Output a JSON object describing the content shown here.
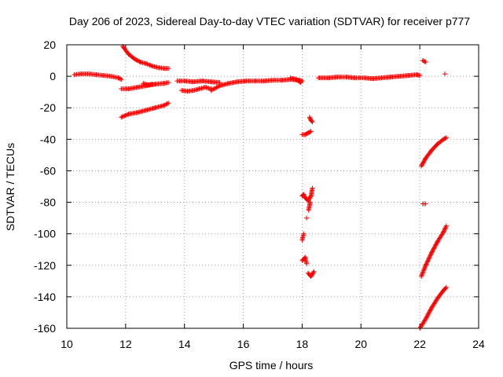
{
  "chart_data": {
    "type": "scatter",
    "title": "Day 206 of 2023, Sidereal Day-to-day VTEC variation (SDTVAR) for receiver p777",
    "xlabel": "GPS time / hours",
    "ylabel": "SDTVAR / TECUs",
    "xlim": [
      10,
      24
    ],
    "ylim": [
      -160,
      20
    ],
    "xticks": [
      "10",
      "12",
      "14",
      "16",
      "18",
      "20",
      "22",
      "24"
    ],
    "yticks": [
      "20",
      "0",
      "-20",
      "-40",
      "-60",
      "-80",
      "-100",
      "-120",
      "-140",
      "-160"
    ],
    "grid": true,
    "marker": "+",
    "color": "#ff0000",
    "series": [
      {
        "name": "seg-1",
        "x": [
          10.25,
          10.5,
          10.75,
          11.0,
          11.25,
          11.5,
          11.75,
          11.85
        ],
        "y": [
          1,
          1.5,
          1.5,
          1,
          0.5,
          0,
          -1,
          -2
        ]
      },
      {
        "name": "seg-2",
        "x": [
          11.9,
          12.1,
          12.3,
          12.5,
          12.7,
          12.9,
          13.1,
          13.3,
          13.45
        ],
        "y": [
          19,
          14,
          11,
          9,
          8,
          6.5,
          5.5,
          5,
          5
        ]
      },
      {
        "name": "seg-3",
        "x": [
          11.85,
          12.1,
          12.4,
          12.7,
          13.0,
          13.3,
          13.45
        ],
        "y": [
          -8,
          -8,
          -7,
          -6,
          -5,
          -4.5,
          -4
        ]
      },
      {
        "name": "seg-4",
        "x": [
          11.85,
          12.1,
          12.4,
          12.7,
          13.0,
          13.3,
          13.45
        ],
        "y": [
          -26,
          -24,
          -23,
          -21.5,
          -20,
          -18.5,
          -17
        ]
      },
      {
        "name": "seg-5",
        "x": [
          12.6,
          12.75,
          12.9
        ],
        "y": [
          -4.5,
          -5.5,
          -5
        ]
      },
      {
        "name": "seg-6",
        "x": [
          13.75,
          14.0,
          14.3,
          14.6,
          14.9,
          15.2
        ],
        "y": [
          -3,
          -3,
          -3.5,
          -3,
          -3.5,
          -4
        ]
      },
      {
        "name": "seg-7",
        "x": [
          13.9,
          14.1,
          14.3,
          14.5,
          14.7,
          14.9
        ],
        "y": [
          -9,
          -9.5,
          -9,
          -8,
          -7,
          -8
        ]
      },
      {
        "name": "seg-8",
        "x": [
          14.9,
          15.2,
          15.5,
          15.8,
          16.1,
          16.4,
          16.7,
          17.0,
          17.3,
          17.6,
          17.9,
          18.0
        ],
        "y": [
          -9,
          -6,
          -4.5,
          -3.5,
          -3,
          -3,
          -3,
          -2.5,
          -2.5,
          -2,
          -2.5,
          -3
        ]
      },
      {
        "name": "seg-9",
        "x": [
          17.6,
          17.8,
          17.95
        ],
        "y": [
          -1,
          -2,
          -4
        ]
      },
      {
        "name": "seg-10",
        "x": [
          18.55,
          18.9,
          19.2,
          19.5,
          19.8,
          20.1,
          20.4,
          20.7,
          21.0,
          21.3,
          21.6,
          21.9,
          22.0
        ],
        "y": [
          -1,
          -1,
          -0.5,
          -0.5,
          -1,
          -1,
          -1.5,
          -1,
          -0.5,
          0,
          0.5,
          1,
          0.5
        ]
      },
      {
        "name": "seg-11",
        "x": [
          22.1,
          22.2
        ],
        "y": [
          10,
          9
        ]
      },
      {
        "name": "seg-12",
        "x": [
          22.85
        ],
        "y": [
          1.5
        ]
      },
      {
        "name": "seg-13",
        "x": [
          18.25,
          18.3,
          18.35
        ],
        "y": [
          -26,
          -28,
          -29
        ]
      },
      {
        "name": "seg-14",
        "x": [
          18.0,
          18.1,
          18.2,
          18.3
        ],
        "y": [
          -37,
          -37,
          -36,
          -35
        ]
      },
      {
        "name": "seg-15",
        "x": [
          18.0,
          18.05,
          18.1,
          18.2,
          18.3,
          18.35
        ],
        "y": [
          -76,
          -75,
          -77,
          -79,
          -76,
          -71
        ]
      },
      {
        "name": "seg-16",
        "x": [
          18.22,
          18.27
        ],
        "y": [
          -85,
          -80
        ]
      },
      {
        "name": "seg-17",
        "x": [
          18.15
        ],
        "y": [
          -90
        ]
      },
      {
        "name": "seg-18",
        "x": [
          18.0,
          18.05
        ],
        "y": [
          -104,
          -100
        ]
      },
      {
        "name": "seg-19",
        "x": [
          18.0,
          18.1,
          18.15
        ],
        "y": [
          -117,
          -115,
          -119
        ]
      },
      {
        "name": "seg-20",
        "x": [
          18.2,
          18.3,
          18.4
        ],
        "y": [
          -125,
          -127,
          -124
        ]
      },
      {
        "name": "seg-21",
        "x": [
          22.05,
          22.2,
          22.4,
          22.6,
          22.8,
          22.9
        ],
        "y": [
          -57,
          -52,
          -47,
          -43,
          -40,
          -39
        ]
      },
      {
        "name": "seg-22",
        "x": [
          22.1,
          22.2
        ],
        "y": [
          -81,
          -81
        ]
      },
      {
        "name": "seg-23",
        "x": [
          22.05,
          22.2,
          22.4,
          22.6,
          22.8,
          22.9
        ],
        "y": [
          -127,
          -120,
          -112,
          -105,
          -99,
          -95
        ]
      },
      {
        "name": "seg-24",
        "x": [
          22.0,
          22.2,
          22.4,
          22.6,
          22.8,
          22.9
        ],
        "y": [
          -160,
          -154,
          -147,
          -141,
          -136,
          -134
        ]
      }
    ]
  }
}
